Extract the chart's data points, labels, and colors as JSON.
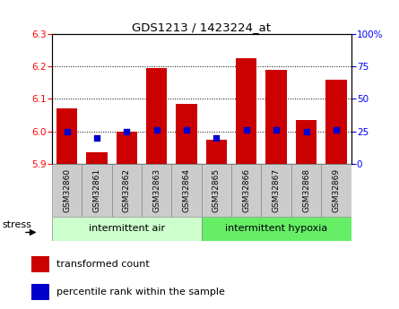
{
  "title": "GDS1213 / 1423224_at",
  "samples": [
    "GSM32860",
    "GSM32861",
    "GSM32862",
    "GSM32863",
    "GSM32864",
    "GSM32865",
    "GSM32866",
    "GSM32867",
    "GSM32868",
    "GSM32869"
  ],
  "transformed_counts": [
    6.07,
    5.935,
    6.0,
    6.195,
    6.085,
    5.975,
    6.225,
    6.19,
    6.035,
    6.16
  ],
  "percentile_ranks": [
    25,
    20,
    25,
    26,
    26,
    20,
    26,
    26,
    25,
    26
  ],
  "ylim_left": [
    5.9,
    6.3
  ],
  "ylim_right": [
    0,
    100
  ],
  "yticks_left": [
    5.9,
    6.0,
    6.1,
    6.2,
    6.3
  ],
  "yticks_right": [
    0,
    25,
    50,
    75,
    100
  ],
  "bar_color": "#cc0000",
  "dot_color": "#0000cc",
  "bar_width": 0.7,
  "group1_label": "intermittent air",
  "group2_label": "intermittent hypoxia",
  "group1_color": "#ccffcc",
  "group2_color": "#66ee66",
  "stress_label": "stress",
  "legend1": "transformed count",
  "legend2": "percentile rank within the sample",
  "tick_label_bg": "#cccccc",
  "base_value": 5.9,
  "bg_color": "#ffffff",
  "plot_bg": "#ffffff",
  "ytick_right_labels": [
    "0",
    "25",
    "50",
    "75",
    "100%"
  ]
}
